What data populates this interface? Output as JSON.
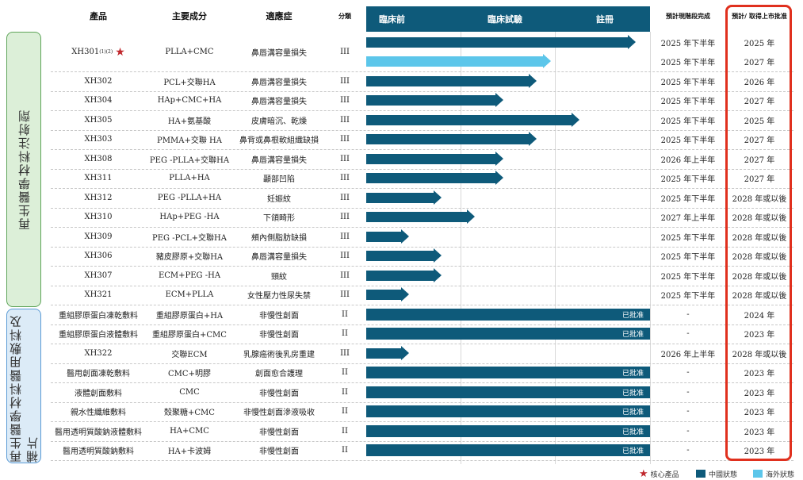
{
  "headers": {
    "product": "產品",
    "ingredient": "主要成分",
    "indication": "適應症",
    "class": "分類",
    "phase_preclinical": "臨床前",
    "phase_clinical": "臨床試驗",
    "phase_registration": "註冊",
    "stage_completion": "預計現階段完成",
    "launch": "預計/ 取得上市批准"
  },
  "groups": [
    {
      "label": "再生醫學材料注射劑"
    },
    {
      "label": "再生醫學材料醫用敷料及補片"
    }
  ],
  "colors": {
    "china": "#0e5a7a",
    "overseas": "#5cc6ea",
    "highlight_box": "#e0301e",
    "star": "#c0282d"
  },
  "legend": {
    "core": "核心產品",
    "china": "中國狀態",
    "overseas": "海外狀態"
  },
  "chart_data": {
    "type": "table",
    "progress_scale": "0 = start of 臨床前, 3 = end of 註冊 (each phase = 1 unit)",
    "rows": [
      {
        "product": "XH301",
        "sup": "(1)(2)",
        "core": true,
        "ingredient": "PLLA+CMC",
        "indication": "鼻唇溝容量損失",
        "class": "III",
        "china_progress": 2.85,
        "overseas_progress": 1.95,
        "stage_completion": "2025 年下半年",
        "stage_completion_2": "2025 年下半年",
        "launch": "2025 年",
        "launch_2": "2027 年"
      },
      {
        "product": "XH302",
        "ingredient": "PCL+交聯HA",
        "indication": "鼻唇溝容量損失",
        "class": "III",
        "china_progress": 1.8,
        "stage_completion": "2025 年下半年",
        "launch": "2026 年"
      },
      {
        "product": "XH304",
        "ingredient": "HAp+CMC+HA",
        "indication": "鼻唇溝容量損失",
        "class": "III",
        "china_progress": 1.45,
        "stage_completion": "2025 年下半年",
        "launch": "2027 年"
      },
      {
        "product": "XH305",
        "ingredient": "HA+氨基酸",
        "indication": "皮膚暗沉、乾燥",
        "class": "III",
        "china_progress": 2.25,
        "stage_completion": "2025 年下半年",
        "launch": "2025 年"
      },
      {
        "product": "XH303",
        "ingredient": "PMMA+交聯 HA",
        "indication": "鼻背或鼻根軟組織缺損",
        "class": "III",
        "china_progress": 1.8,
        "stage_completion": "2025 年下半年",
        "launch": "2027 年"
      },
      {
        "product": "XH308",
        "ingredient": "PEG -PLLA+交聯HA",
        "indication": "鼻唇溝容量損失",
        "class": "III",
        "china_progress": 1.45,
        "stage_completion": "2026 年上半年",
        "launch": "2027 年"
      },
      {
        "product": "XH311",
        "ingredient": "PLLA+HA",
        "indication": "顳部凹陷",
        "class": "III",
        "china_progress": 1.45,
        "stage_completion": "2025 年下半年",
        "launch": "2027 年"
      },
      {
        "product": "XH312",
        "ingredient": "PEG -PLLA+HA",
        "indication": "妊娠紋",
        "class": "III",
        "china_progress": 0.8,
        "stage_completion": "2025 年下半年",
        "launch": "2028 年或以後"
      },
      {
        "product": "XH310",
        "ingredient": "HAp+PEG -HA",
        "indication": "下頜畸形",
        "class": "III",
        "china_progress": 1.15,
        "stage_completion": "2027 年上半年",
        "launch": "2028 年或以後"
      },
      {
        "product": "XH309",
        "ingredient": "PEG -PCL+交聯HA",
        "indication": "頰內側脂肪缺損",
        "class": "III",
        "china_progress": 0.45,
        "stage_completion": "2025 年下半年",
        "launch": "2028 年或以後"
      },
      {
        "product": "XH306",
        "ingredient": "豬皮膠原+交聯HA",
        "indication": "鼻唇溝容量損失",
        "class": "III",
        "china_progress": 0.8,
        "stage_completion": "2025 年下半年",
        "launch": "2028 年或以後"
      },
      {
        "product": "XH307",
        "ingredient": "ECM+PEG -HA",
        "indication": "頸紋",
        "class": "III",
        "china_progress": 0.8,
        "stage_completion": "2025 年下半年",
        "launch": "2028 年或以後"
      },
      {
        "product": "XH321",
        "ingredient": "ECM+PLLA",
        "indication": "女性壓力性尿失禁",
        "class": "III",
        "china_progress": 0.45,
        "stage_completion": "2025 年下半年",
        "launch": "2028 年或以後"
      },
      {
        "product": "重組膠原蛋白凍乾敷料",
        "ingredient": "重組膠原蛋白+HA",
        "indication": "非慢性創面",
        "class": "II",
        "approved": true,
        "approved_label": "已批准",
        "stage_completion": "-",
        "launch": "2024 年"
      },
      {
        "product": "重組膠原蛋白液體敷料",
        "ingredient": "重組膠原蛋白+CMC",
        "indication": "非慢性創面",
        "class": "II",
        "approved": true,
        "approved_label": "已批准",
        "stage_completion": "-",
        "launch": "2023 年"
      },
      {
        "product": "XH322",
        "ingredient": "交聯ECM",
        "indication": "乳腺癌術後乳房重建",
        "class": "III",
        "china_progress": 0.45,
        "stage_completion": "2026 年上半年",
        "launch": "2028 年或以後"
      },
      {
        "product": "醫用創面凍乾敷料",
        "ingredient": "CMC+明膠",
        "indication": "創面愈合護理",
        "class": "II",
        "approved": true,
        "approved_label": "已批准",
        "stage_completion": "-",
        "launch": "2023 年"
      },
      {
        "product": "液體創面敷料",
        "ingredient": "CMC",
        "indication": "非慢性創面",
        "class": "II",
        "approved": true,
        "approved_label": "已批准",
        "stage_completion": "-",
        "launch": "2023 年"
      },
      {
        "product": "親水性纖維敷料",
        "ingredient": "殼聚糖+CMC",
        "indication": "非慢性創面滲液吸收",
        "class": "II",
        "approved": true,
        "approved_label": "已批准",
        "stage_completion": "-",
        "launch": "2023 年"
      },
      {
        "product": "醫用透明質酸鈉液體敷料",
        "ingredient": "HA+CMC",
        "indication": "非慢性創面",
        "class": "II",
        "approved": true,
        "approved_label": "已批准",
        "stage_completion": "-",
        "launch": "2023 年"
      },
      {
        "product": "醫用透明質酸鈉敷料",
        "ingredient": "HA+卡波姆",
        "indication": "非慢性創面",
        "class": "II",
        "approved": true,
        "approved_label": "已批准",
        "stage_completion": "-",
        "launch": "2023 年"
      }
    ]
  }
}
